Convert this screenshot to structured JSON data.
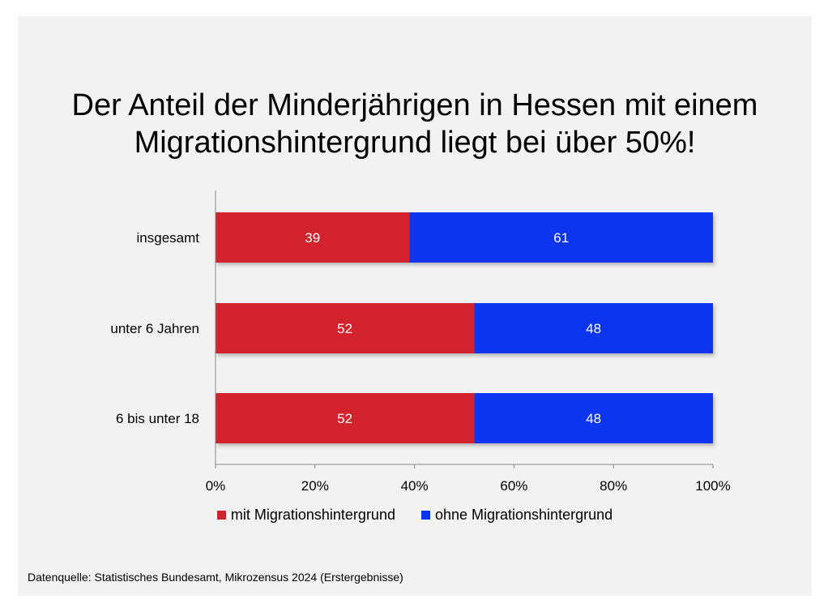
{
  "title_lines": [
    "Der Anteil der Minderjährigen in Hessen mit einem",
    "Migrationshintergrund liegt bei über 50%!"
  ],
  "source": "Datenquelle: Statistisches Bundesamt, Mikrozensus 2024 (Erstergebnisse)",
  "colors": {
    "mit": "#d2232e",
    "ohne": "#0b34f0",
    "background": "#f2f2f2"
  },
  "chart_data": {
    "type": "bar",
    "orientation": "horizontal",
    "stacked": "percent",
    "categories": [
      "insgesamt",
      "unter 6 Jahren",
      "6 bis unter 18"
    ],
    "series": [
      {
        "name": "mit Migrationshintergrund",
        "values": [
          39,
          52,
          52
        ],
        "color": "#d2232e"
      },
      {
        "name": "ohne Migrationshintergrund",
        "values": [
          61,
          48,
          48
        ],
        "color": "#0b34f0"
      }
    ],
    "xlim": [
      0,
      100
    ],
    "x_ticks": [
      "0%",
      "20%",
      "40%",
      "60%",
      "80%",
      "100%"
    ],
    "legend_position": "bottom",
    "grid": false,
    "data_labels": true
  }
}
